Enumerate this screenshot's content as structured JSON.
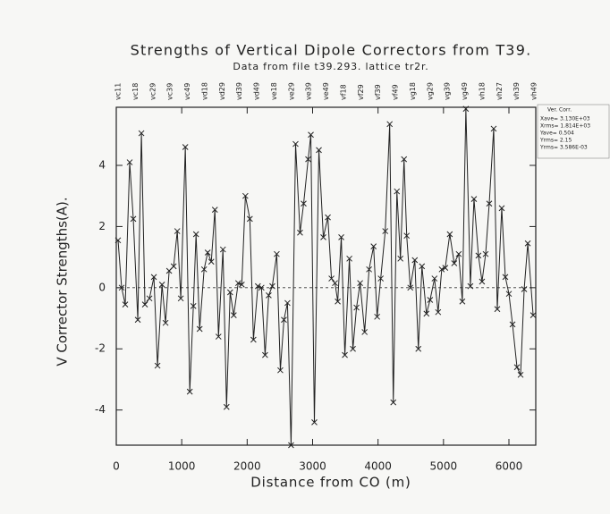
{
  "chart_data": {
    "type": "line",
    "title": "Strengths of Vertical Dipole Correctors from T39.",
    "subtitle": "Data from file t39.293. lattice tr2r.",
    "x_label": "Distance from CO (m)",
    "y_label": "V Corrector Strengths(A).",
    "top_labels": [
      "vc11",
      "vc18",
      "vc29",
      "vc39",
      "vc49",
      "vd18",
      "vd29",
      "vd39",
      "vd49",
      "ve18",
      "ve29",
      "ve39",
      "ve49",
      "vf18",
      "vf29",
      "vf39",
      "vf49",
      "vg18",
      "vg29",
      "vg39",
      "vg49",
      "vh18",
      "vh27",
      "vh39",
      "vh49"
    ],
    "legend_stats": [
      "Xave=  3.130E+03",
      "Xrms=  1.814E+03",
      "Yave=  0.504",
      "Yrms=  2.15",
      "Yrms=  3.586E-03"
    ],
    "x": [
      27,
      82,
      137,
      205,
      260,
      329,
      384,
      438,
      507,
      575,
      630,
      699,
      753,
      808,
      877,
      932,
      986,
      1055,
      1123,
      1178,
      1219,
      1274,
      1342,
      1397,
      1452,
      1507,
      1562,
      1630,
      1685,
      1740,
      1795,
      1863,
      1918,
      1973,
      2041,
      2096,
      2164,
      2219,
      2274,
      2329,
      2384,
      2452,
      2507,
      2562,
      2616,
      2671,
      2740,
      2808,
      2863,
      2932,
      2973,
      3027,
      3096,
      3164,
      3233,
      3288,
      3342,
      3384,
      3438,
      3493,
      3562,
      3616,
      3671,
      3726,
      3795,
      3863,
      3932,
      3986,
      4041,
      4110,
      4178,
      4233,
      4288,
      4342,
      4397,
      4438,
      4493,
      4562,
      4616,
      4671,
      4740,
      4795,
      4863,
      4918,
      4973,
      5027,
      5096,
      5164,
      5233,
      5288,
      5342,
      5411,
      5466,
      5534,
      5589,
      5644,
      5699,
      5767,
      5822,
      5890,
      5945,
      6000,
      6055,
      6123,
      6178,
      6233,
      6288,
      6370
    ],
    "series": [
      {
        "name": "Ver. Corr.",
        "color": "#222222",
        "values": [
          1.55,
          0,
          -0.55,
          4.1,
          2.25,
          -1.05,
          5.05,
          -0.55,
          -0.35,
          0.35,
          -2.55,
          0.1,
          -1.15,
          0.55,
          0.7,
          1.85,
          -0.35,
          4.6,
          -3.4,
          -0.6,
          1.75,
          -1.35,
          0.6,
          1.15,
          0.85,
          2.55,
          -1.6,
          1.25,
          -3.9,
          -0.15,
          -0.9,
          0.15,
          0.1,
          3.0,
          2.25,
          -1.7,
          0.05,
          0,
          -2.2,
          -0.25,
          0.05,
          1.1,
          -2.7,
          -1.05,
          -0.5,
          -5.15,
          4.7,
          1.8,
          2.75,
          4.2,
          5.0,
          -4.4,
          4.5,
          1.65,
          2.3,
          0.3,
          0.15,
          -0.45,
          1.65,
          -2.2,
          0.95,
          -2.0,
          -0.65,
          0.15,
          -1.45,
          0.6,
          1.35,
          -0.95,
          0.3,
          1.85,
          5.35,
          -3.75,
          3.15,
          0.95,
          4.2,
          1.7,
          0,
          0.9,
          -2.0,
          0.7,
          -0.85,
          -0.4,
          0.3,
          -0.8,
          0.6,
          0.65,
          1.75,
          0.8,
          1.1,
          -0.45,
          5.85,
          0.05,
          2.9,
          1.05,
          0.2,
          1.1,
          2.75,
          5.2,
          -0.7,
          2.6,
          0.35,
          -0.2,
          -1.2,
          -2.6,
          -2.85,
          -0.05,
          1.45,
          -0.9
        ]
      }
    ],
    "xlim": [
      0,
      6410
    ],
    "xticks": [
      0,
      1000,
      2000,
      3000,
      4000,
      5000,
      6000
    ],
    "ylim": [
      -5.15,
      5.9
    ],
    "yticks": [
      -4,
      -2,
      0,
      2,
      4
    ]
  }
}
